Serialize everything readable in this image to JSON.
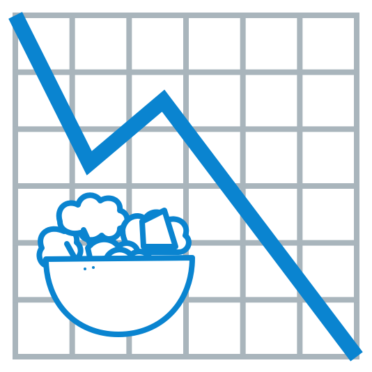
{
  "chart_data": {
    "type": "line",
    "x": [
      0,
      1.3,
      2.6,
      6
    ],
    "series": [
      {
        "values": [
          6,
          3.4,
          4.5,
          0
        ]
      }
    ],
    "xlim": [
      0,
      6
    ],
    "ylim": [
      0,
      6
    ],
    "grid": true,
    "title": "",
    "xlabel": "",
    "ylabel": ""
  },
  "colors": {
    "grid": "#a9b5bc",
    "line": "#0a84d0",
    "icon": "#0a84d0",
    "background": "#ffffff"
  },
  "icons": {
    "overlay": "salad-bowl-icon"
  }
}
